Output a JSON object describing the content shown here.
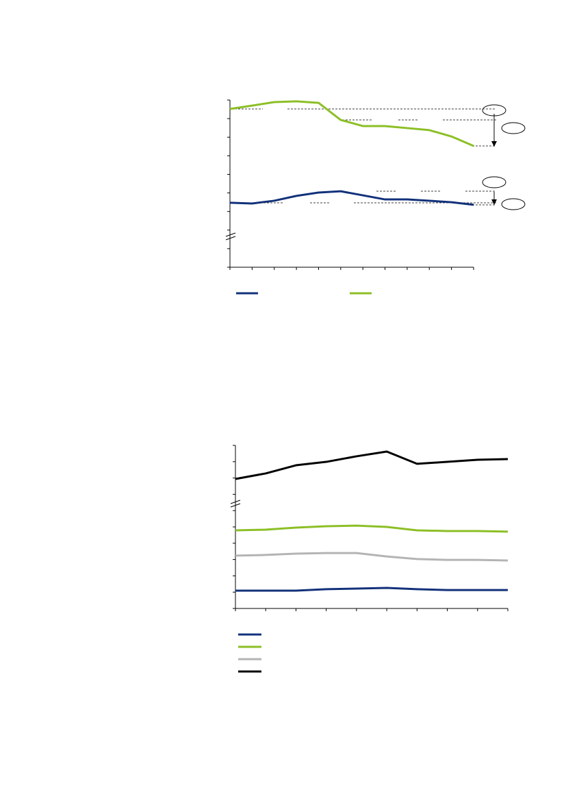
{
  "chart_data": [
    {
      "type": "line",
      "x": [
        0,
        1,
        2,
        3,
        4,
        5,
        6,
        7,
        8,
        9,
        10,
        11
      ],
      "xlim": [
        0,
        11
      ],
      "xticks": [
        0,
        1,
        2,
        3,
        4,
        5,
        6,
        7,
        8,
        9,
        10,
        11
      ],
      "ylim": [
        0,
        9
      ],
      "yticks": [
        0,
        1,
        2,
        3,
        4,
        5,
        6,
        7,
        8,
        9
      ],
      "series": [
        {
          "color": "#12317a",
          "values": [
            3.47,
            3.43,
            3.58,
            3.84,
            4.02,
            4.09,
            3.87,
            3.65,
            3.65,
            3.58,
            3.5,
            3.36
          ]
        },
        {
          "color": "#8cbf26",
          "values": [
            8.52,
            8.7,
            8.89,
            8.93,
            8.85,
            7.93,
            7.6,
            7.6,
            7.49,
            7.38,
            7.04,
            6.53
          ]
        }
      ]
    },
    {
      "type": "line",
      "x": [
        0,
        1,
        2,
        3,
        4,
        5,
        6,
        7,
        8,
        9
      ],
      "xlim": [
        0,
        9
      ],
      "xticks": [
        0,
        1,
        2,
        3,
        4,
        5,
        6,
        7,
        8,
        9
      ],
      "ylim": [
        0,
        10
      ],
      "yticks": [
        0,
        1,
        2,
        3,
        4,
        5,
        6,
        7,
        8,
        9,
        10
      ],
      "series": [
        {
          "color": "#12317a",
          "values": [
            1.09,
            1.09,
            1.09,
            1.18,
            1.22,
            1.26,
            1.18,
            1.13,
            1.13,
            1.13
          ]
        },
        {
          "color": "#8cbf26",
          "values": [
            4.79,
            4.83,
            4.96,
            5.04,
            5.08,
            5.0,
            4.79,
            4.75,
            4.75,
            4.71
          ]
        },
        {
          "color": "#b4b4b4",
          "values": [
            3.24,
            3.28,
            3.36,
            3.4,
            3.4,
            3.19,
            3.03,
            2.98,
            2.98,
            2.94
          ]
        },
        {
          "color": "#000000",
          "values": [
            7.94,
            8.28,
            8.78,
            8.99,
            9.33,
            9.62,
            8.87,
            8.99,
            9.12,
            9.16
          ]
        }
      ]
    }
  ]
}
